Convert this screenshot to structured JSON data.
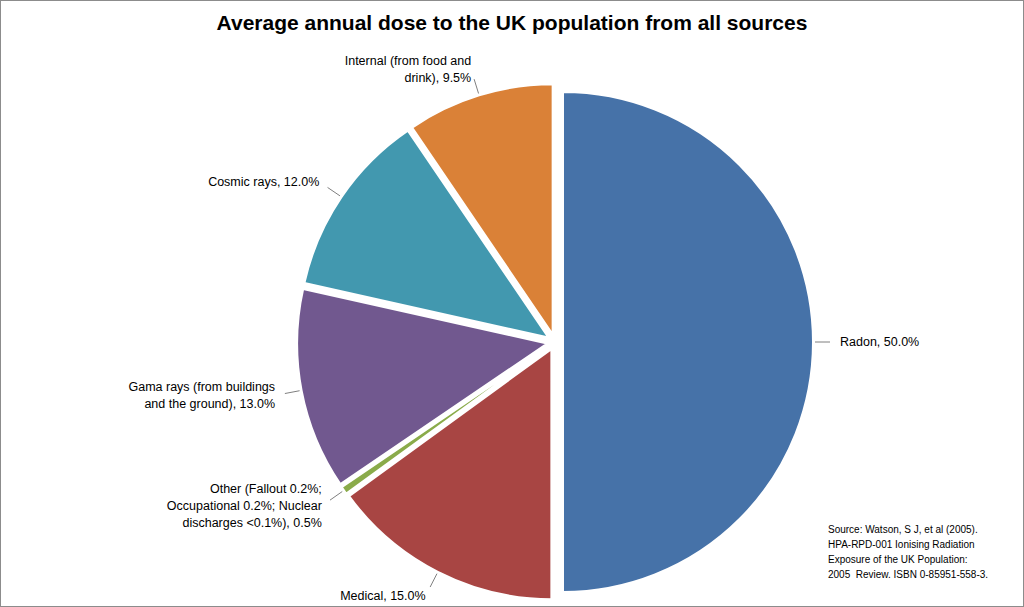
{
  "chart_data": {
    "type": "pie",
    "title": "Average annual dose to the UK population from all sources",
    "categories": [
      "Radon, 50.0%",
      "Medical, 15.0%",
      "Other (Fallout 0.2%; Occupational 0.2%; Nuclear discharges <0.1%), 0.5%",
      "Gama rays (from buildings and the ground), 13.0%",
      "Cosmic rays, 12.0%",
      "Internal (from food and drink), 9.5%"
    ],
    "values": [
      50.0,
      15.0,
      0.5,
      13.0,
      12.0,
      9.5
    ],
    "colors": [
      "#4672a8",
      "#a84543",
      "#8aab4a",
      "#71588f",
      "#4298af",
      "#da8137"
    ],
    "source": [
      "Source: Watson, S J, et al (2005).",
      "HPA-RPD-001 Ionising Radiation",
      "Exposure of the UK Population:",
      "2005  Review. ISBN 0-85951-558-3."
    ]
  }
}
